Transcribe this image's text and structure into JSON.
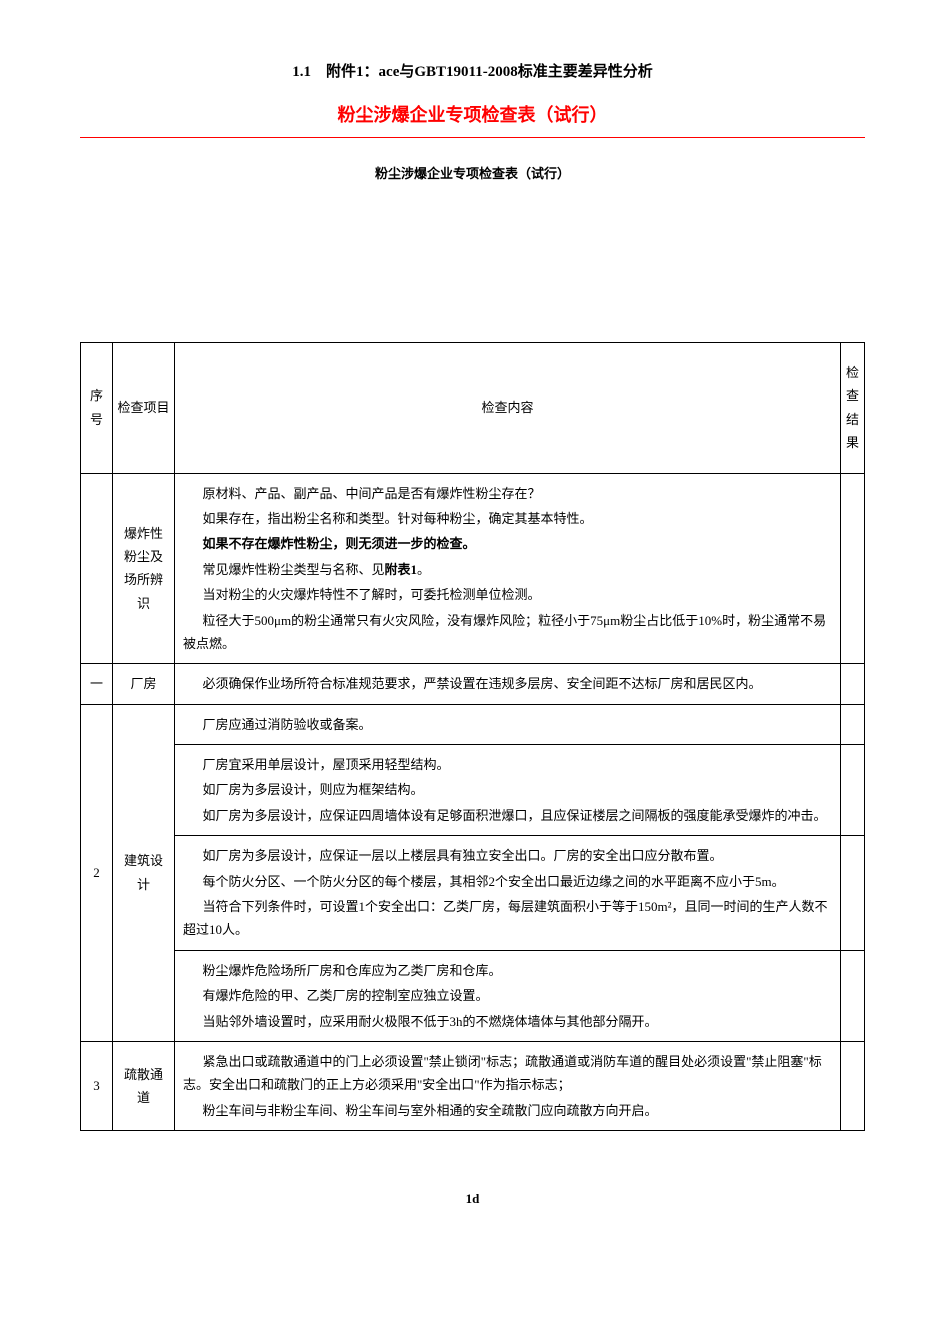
{
  "header": {
    "title": "1.1　附件1：ace与GBT19011-2008标准主要差异性分析",
    "red_title": "粉尘涉爆企业专项检查表（试行）",
    "sub_title": "粉尘涉爆企业专项检查表（试行）"
  },
  "table": {
    "headers": {
      "seq": "序号",
      "item": "检查项目",
      "content": "检查内容",
      "result": "检查结果"
    },
    "rows": [
      {
        "seq": "",
        "item": "爆炸性粉尘及场所辨识",
        "content_lines": [
          {
            "text": "原材料、产品、副产品、中间产品是否有爆炸性粉尘存在？",
            "bold": false
          },
          {
            "text": "如果存在，指出粉尘名称和类型。针对每种粉尘，确定其基本特性。",
            "bold": false
          },
          {
            "text": "如果不存在爆炸性粉尘，则无须进一步的检查。",
            "bold": true
          },
          {
            "text": "常见爆炸性粉尘类型与名称、见附表1。",
            "bold": false,
            "bold_part": "附表1"
          },
          {
            "text": "当对粉尘的火灾爆炸特性不了解时，可委托检测单位检测。",
            "bold": false
          },
          {
            "text": "粒径大于500μm的粉尘通常只有火灾风险，没有爆炸风险；粒径小于75μm粉尘占比低于10%时，粉尘通常不易被点燃。",
            "bold": false
          }
        ]
      },
      {
        "seq": "一",
        "item": "厂房",
        "content_lines": [
          {
            "text": "必须确保作业场所符合标准规范要求，严禁设置在违规多层房、安全间距不达标厂房和居民区内。",
            "bold": false
          }
        ]
      },
      {
        "seq": "2",
        "item": "建筑设计",
        "sub_rows": [
          [
            {
              "text": "厂房应通过消防验收或备案。",
              "bold": false
            }
          ],
          [
            {
              "text": "厂房宜采用单层设计，屋顶采用轻型结构。",
              "bold": false
            },
            {
              "text": "如厂房为多层设计，则应为框架结构。",
              "bold": false
            },
            {
              "text": "如厂房为多层设计，应保证四周墙体设有足够面积泄爆口，且应保证楼层之间隔板的强度能承受爆炸的冲击。",
              "bold": false
            }
          ],
          [
            {
              "text": "如厂房为多层设计，应保证一层以上楼层具有独立安全出口。厂房的安全出口应分散布置。",
              "bold": false
            },
            {
              "text": "每个防火分区、一个防火分区的每个楼层，其相邻2个安全出口最近边缘之间的水平距离不应小于5m。",
              "bold": false
            },
            {
              "text": "当符合下列条件时，可设置1个安全出口：乙类厂房，每层建筑面积小于等于150m²，且同一时间的生产人数不超过10人。",
              "bold": false
            }
          ],
          [
            {
              "text": "粉尘爆炸危险场所厂房和仓库应为乙类厂房和仓库。",
              "bold": false
            },
            {
              "text": "有爆炸危险的甲、乙类厂房的控制室应独立设置。",
              "bold": false
            },
            {
              "text": "当贴邻外墙设置时，应采用耐火极限不低于3h的不燃烧体墙体与其他部分隔开。",
              "bold": false
            }
          ]
        ]
      },
      {
        "seq": "3",
        "item": "疏散通道",
        "content_lines": [
          {
            "text": "紧急出口或疏散通道中的门上必须设置\"禁止锁闭\"标志；疏散通道或消防车道的醒目处必须设置\"禁止阻塞\"标志。安全出口和疏散门的正上方必须采用\"安全出口\"作为指示标志；",
            "bold": false
          },
          {
            "text": "粉尘车间与非粉尘车间、粉尘车间与室外相通的安全疏散门应向疏散方向开启。",
            "bold": false
          }
        ]
      }
    ]
  },
  "page_number": "1d",
  "colors": {
    "red": "#ff0000",
    "black": "#000000",
    "white": "#ffffff"
  }
}
